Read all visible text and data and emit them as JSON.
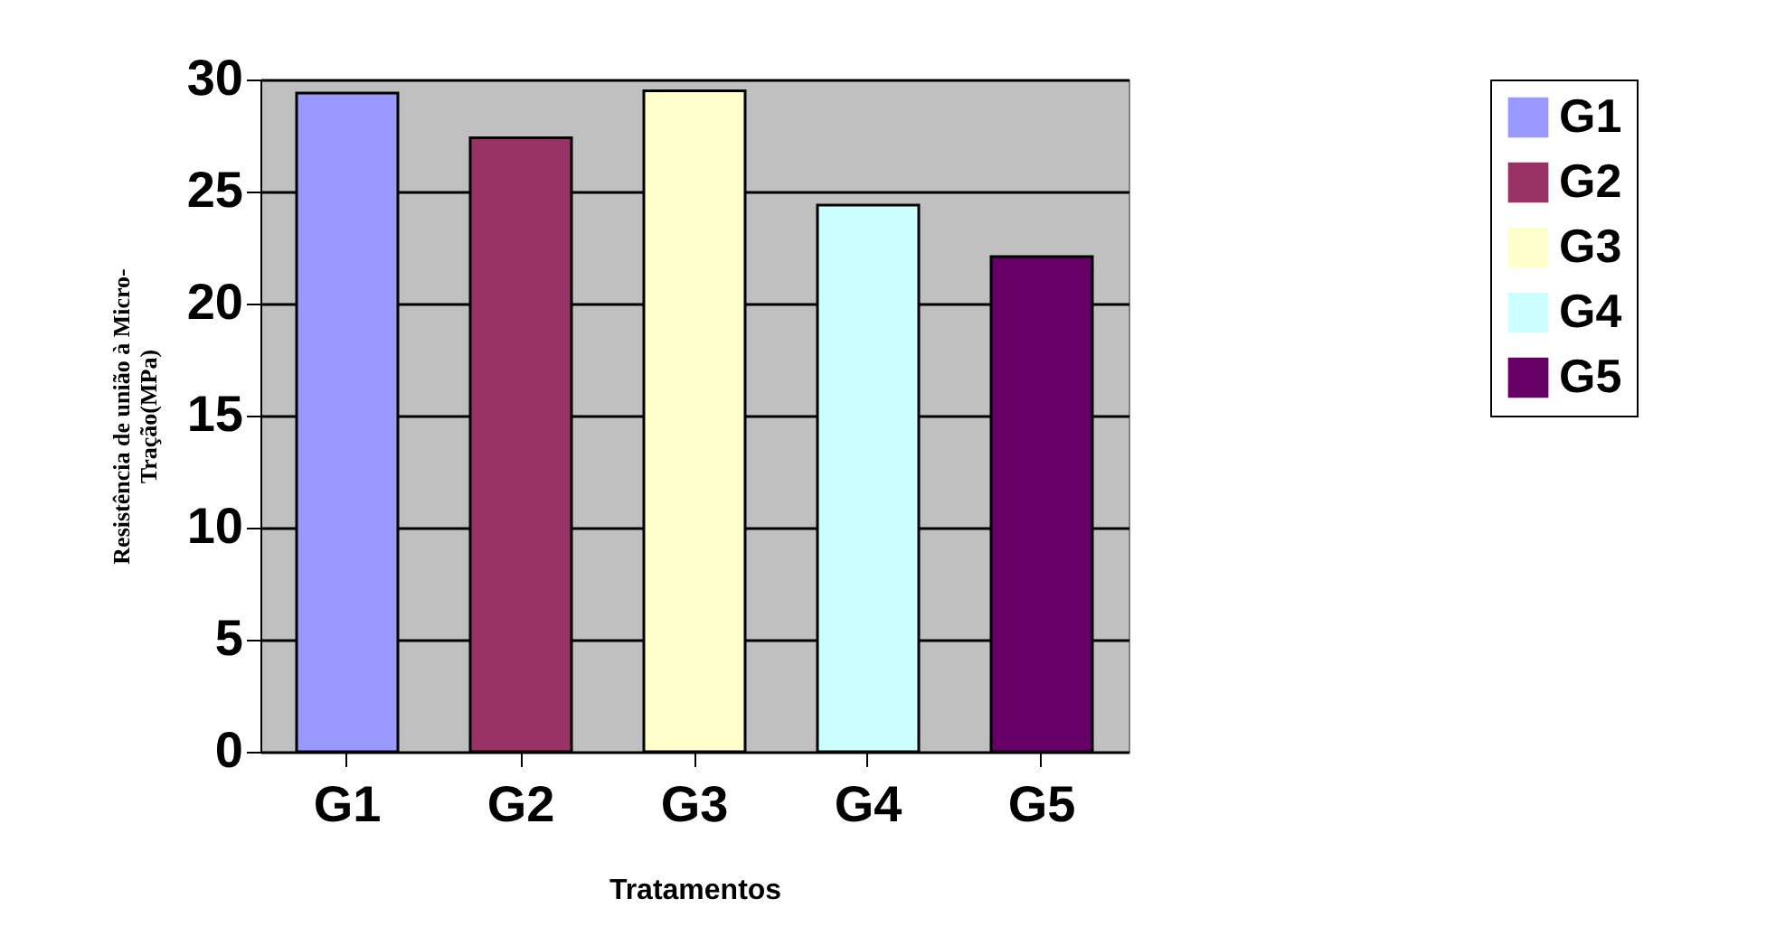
{
  "chart_data": {
    "type": "bar",
    "xlabel": "Tratamentos",
    "ylabel": "Resistência de união à Micro-Tração(MPa)",
    "categories": [
      "G1",
      "G2",
      "G3",
      "G4",
      "G5"
    ],
    "series": [
      {
        "name": "G1",
        "color": "#9999ff",
        "values": [
          29.4,
          null,
          null,
          null,
          null
        ]
      },
      {
        "name": "G2",
        "color": "#993366",
        "values": [
          null,
          27.4,
          null,
          null,
          null
        ]
      },
      {
        "name": "G3",
        "color": "#ffffcc",
        "values": [
          null,
          null,
          29.5,
          null,
          null
        ]
      },
      {
        "name": "G4",
        "color": "#ccffff",
        "values": [
          null,
          null,
          null,
          24.4,
          null
        ]
      },
      {
        "name": "G5",
        "color": "#660066",
        "values": [
          null,
          null,
          null,
          null,
          22.1
        ]
      }
    ],
    "ylim": [
      0,
      30
    ],
    "yticks": [
      0,
      5,
      10,
      15,
      20,
      25,
      30
    ],
    "grid": "y",
    "legend": "right"
  }
}
